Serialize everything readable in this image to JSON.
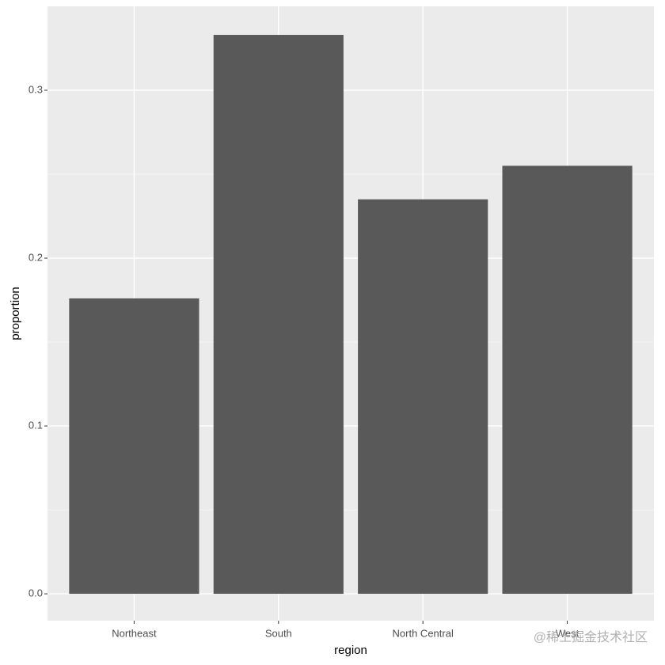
{
  "chart_data": {
    "type": "bar",
    "x_label": "region",
    "y_label": "proportion",
    "categories": [
      "Northeast",
      "South",
      "North Central",
      "West"
    ],
    "values": [
      0.176,
      0.333,
      0.235,
      0.255
    ],
    "color": "#595959",
    "ylim": [
      -0.016,
      0.35
    ],
    "yticks": [
      {
        "value": 0,
        "label": "0.0"
      },
      0.1,
      0.2,
      0.3
    ],
    "grid": true
  },
  "watermark": "@稀土掘金技术社区"
}
